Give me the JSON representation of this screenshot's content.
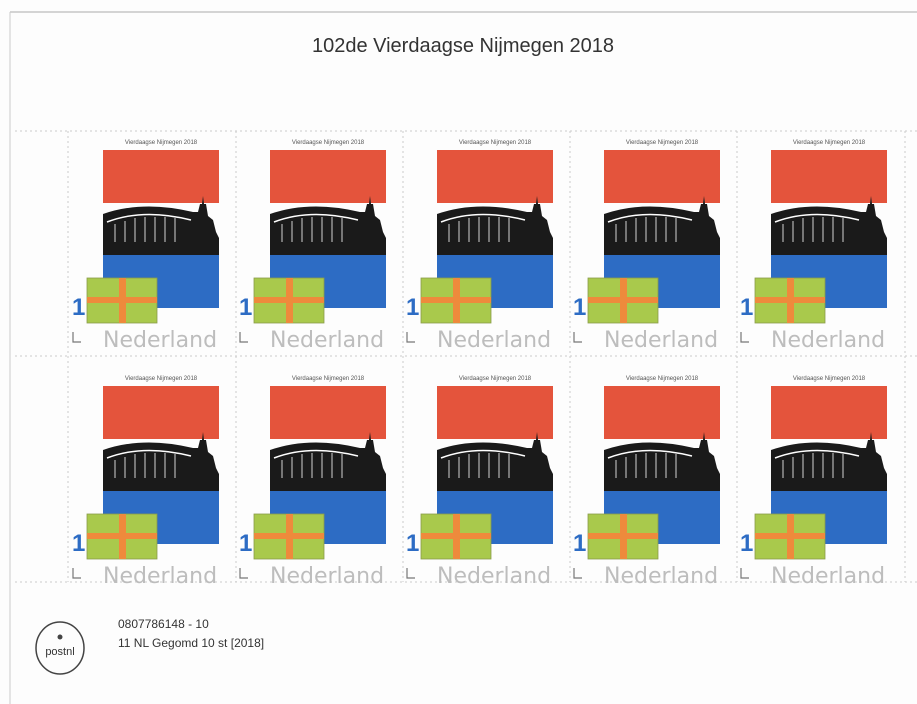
{
  "title": "102de Vierdaagse Nijmegen 2018",
  "stamps": [
    {
      "caption": "Vierdaagse Nijmegen 2018",
      "value": 1,
      "country": "Nederland"
    },
    {
      "caption": "Vierdaagse Nijmegen 2018",
      "value": 1,
      "country": "Nederland"
    },
    {
      "caption": "Vierdaagse Nijmegen 2018",
      "value": 1,
      "country": "Nederland"
    },
    {
      "caption": "Vierdaagse Nijmegen 2018",
      "value": 1,
      "country": "Nederland"
    },
    {
      "caption": "Vierdaagse Nijmegen 2018",
      "value": 1,
      "country": "Nederland"
    },
    {
      "caption": "Vierdaagse Nijmegen 2018",
      "value": 1,
      "country": "Nederland"
    },
    {
      "caption": "Vierdaagse Nijmegen 2018",
      "value": 1,
      "country": "Nederland"
    },
    {
      "caption": "Vierdaagse Nijmegen 2018",
      "value": 1,
      "country": "Nederland"
    },
    {
      "caption": "Vierdaagse Nijmegen 2018",
      "value": 1,
      "country": "Nederland"
    },
    {
      "caption": "Vierdaagse Nijmegen 2018",
      "value": 1,
      "country": "Nederland"
    }
  ],
  "footer": {
    "code": "0807786148  -  10",
    "description": "11 NL Gegomd 10 st  [2018]",
    "logo": "postnl"
  }
}
